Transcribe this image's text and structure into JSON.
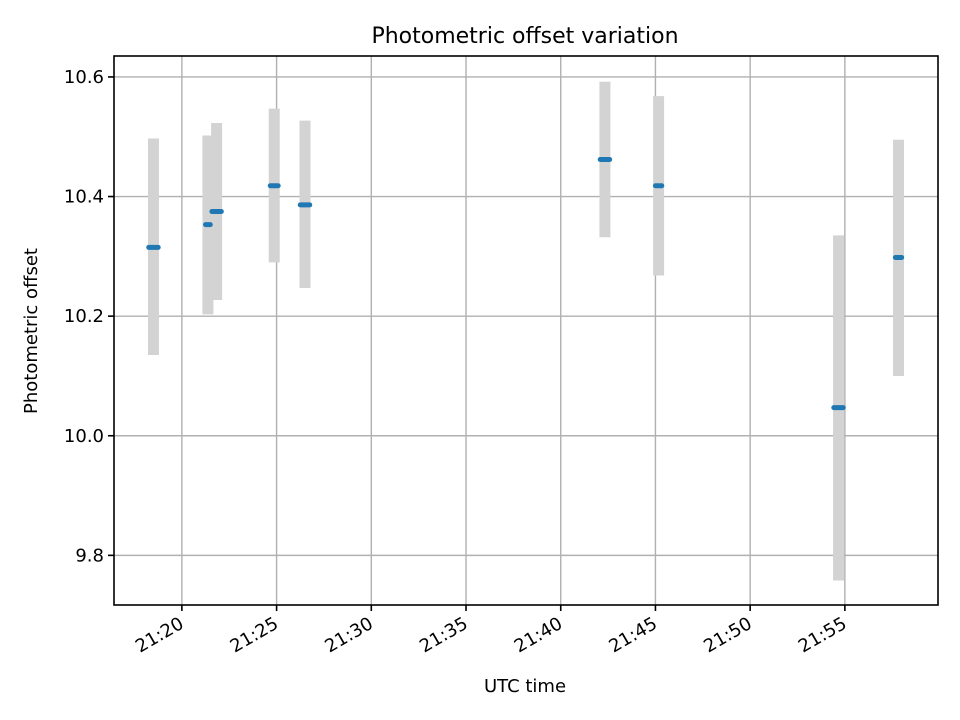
{
  "chart_data": {
    "type": "scatter",
    "title": "Photometric offset variation",
    "xlabel": "UTC time",
    "ylabel": "Photometric offset",
    "x_tick_labels": [
      "21:20",
      "21:25",
      "21:30",
      "21:35",
      "21:40",
      "21:45",
      "21:50",
      "21:55"
    ],
    "y_tick_labels": [
      "9.8",
      "10.0",
      "10.2",
      "10.4",
      "10.6"
    ],
    "y_ticks": [
      9.8,
      10.0,
      10.2,
      10.4,
      10.6
    ],
    "ylim": [
      9.717,
      10.635
    ],
    "xlim": [
      "21:16:25",
      "21:59:55"
    ],
    "grid": true,
    "colors": {
      "point": "#1f77b4",
      "errorbar": "#d3d3d3",
      "grid": "#b0b0b0"
    },
    "points": [
      {
        "t_start": "21:18:15",
        "t_end": "21:18:45",
        "y": 10.315,
        "ylow": 10.135,
        "yhigh": 10.497
      },
      {
        "t_start": "21:21:15",
        "t_end": "21:21:30",
        "y": 10.353,
        "ylow": 10.203,
        "yhigh": 10.502
      },
      {
        "t_start": "21:21:35",
        "t_end": "21:22:05",
        "y": 10.375,
        "ylow": 10.227,
        "yhigh": 10.523
      },
      {
        "t_start": "21:24:40",
        "t_end": "21:25:05",
        "y": 10.418,
        "ylow": 10.29,
        "yhigh": 10.547
      },
      {
        "t_start": "21:26:15",
        "t_end": "21:26:45",
        "y": 10.386,
        "ylow": 10.247,
        "yhigh": 10.527
      },
      {
        "t_start": "21:42:05",
        "t_end": "21:42:35",
        "y": 10.462,
        "ylow": 10.332,
        "yhigh": 10.592
      },
      {
        "t_start": "21:45:00",
        "t_end": "21:45:20",
        "y": 10.418,
        "ylow": 10.268,
        "yhigh": 10.568
      },
      {
        "t_start": "21:54:25",
        "t_end": "21:54:55",
        "y": 10.047,
        "ylow": 9.758,
        "yhigh": 10.335
      },
      {
        "t_start": "21:57:40",
        "t_end": "21:58:00",
        "y": 10.298,
        "ylow": 10.1,
        "yhigh": 10.495
      }
    ]
  }
}
